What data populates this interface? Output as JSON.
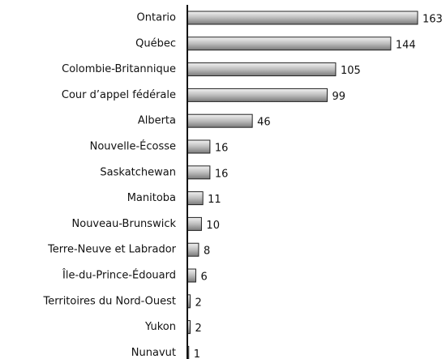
{
  "chart_data": {
    "type": "bar",
    "orientation": "horizontal",
    "categories": [
      "Ontario",
      "Québec",
      "Colombie-Britannique",
      "Cour d’appel fédérale",
      "Alberta",
      "Nouvelle-Écosse",
      "Saskatchewan",
      "Manitoba",
      "Nouveau-Brunswick",
      "Terre-Neuve et Labrador",
      "Île-du-Prince-Édouard",
      "Territoires du Nord-Ouest",
      "Yukon",
      "Nunavut"
    ],
    "values": [
      163,
      144,
      105,
      99,
      46,
      16,
      16,
      11,
      10,
      8,
      6,
      2,
      2,
      1
    ],
    "color": "#a8a8a8"
  }
}
